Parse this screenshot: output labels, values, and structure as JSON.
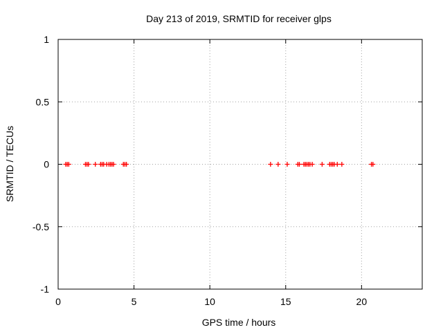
{
  "chart_data": {
    "type": "scatter",
    "title": "Day 213 of 2019, SRMTID for receiver glps",
    "xlabel": "GPS time / hours",
    "ylabel": "SRMTID / TECUs",
    "xlim": [
      0,
      24
    ],
    "ylim": [
      -1,
      1
    ],
    "xticks": [
      0,
      5,
      10,
      15,
      20
    ],
    "xtick_labels": [
      "0",
      "5",
      "10",
      "15",
      "20"
    ],
    "yticks": [
      -1,
      -0.5,
      0,
      0.5,
      1
    ],
    "ytick_labels": [
      "-1",
      "-0.5",
      "0",
      "0.5",
      "1"
    ],
    "grid": true,
    "marker": "+",
    "marker_color": "#ff0000",
    "series": [
      {
        "name": "SRMTID",
        "x": [
          0.5,
          0.6,
          0.7,
          1.8,
          1.9,
          2.0,
          2.45,
          2.8,
          2.9,
          3.0,
          3.2,
          3.35,
          3.45,
          3.55,
          3.65,
          4.3,
          4.4,
          4.5,
          14.0,
          14.5,
          15.1,
          15.8,
          15.9,
          16.2,
          16.3,
          16.4,
          16.5,
          16.6,
          16.75,
          17.4,
          17.9,
          18.0,
          18.1,
          18.2,
          18.4,
          18.7,
          20.65,
          20.75
        ],
        "y": [
          0,
          0,
          0,
          0,
          0,
          0,
          0,
          0,
          0,
          0,
          0,
          0,
          0,
          0,
          0,
          0,
          0,
          0,
          0,
          0,
          0,
          0,
          0,
          0,
          0,
          0,
          0,
          0,
          0,
          0,
          0,
          0,
          0,
          0,
          0,
          0,
          0,
          0
        ]
      }
    ]
  }
}
